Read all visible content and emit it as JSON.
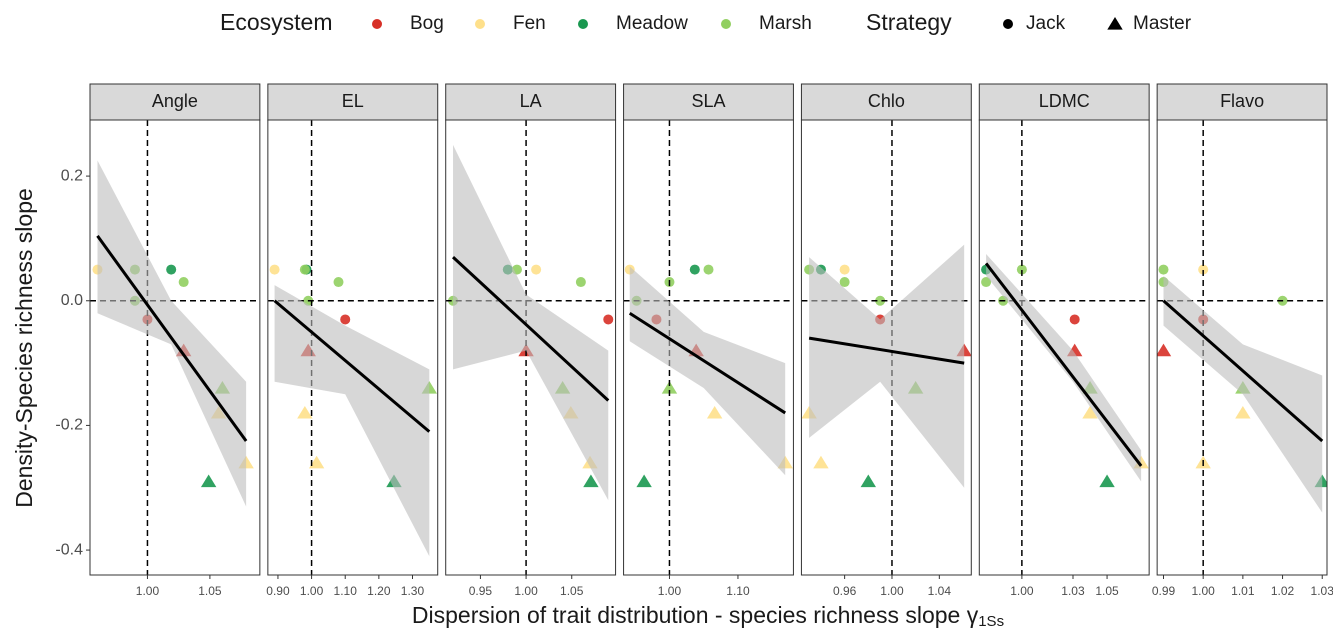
{
  "legend": {
    "ecosystem": {
      "title": "Ecosystem",
      "items": [
        {
          "name": "Bog",
          "color": "#d73027"
        },
        {
          "name": "Fen",
          "color": "#fee08b"
        },
        {
          "name": "Meadow",
          "color": "#1a9850"
        },
        {
          "name": "Marsh",
          "color": "#91cf60"
        }
      ]
    },
    "strategy": {
      "title": "Strategy",
      "items": [
        {
          "name": "Jack",
          "shape": "circle"
        },
        {
          "name": "Master",
          "shape": "triangle"
        }
      ]
    }
  },
  "x_label": "Dispersion of trait distribution - species richness slope γ",
  "x_label_sub": "1Ss",
  "y_label": "Density-Species richness slope",
  "chart_data": [
    {
      "type": "scatter",
      "title": "Angle",
      "xlim": [
        0.954,
        1.09
      ],
      "ylim": [
        -0.44,
        0.29
      ],
      "yticks": [
        -0.4,
        -0.2,
        {
          "value": 0,
          "label": "0.0"
        },
        0.2
      ],
      "xticks": [
        {
          "value": 1,
          "label": "1.00"
        },
        {
          "value": 1.05,
          "label": "1.05"
        }
      ],
      "hline": 0,
      "vline": 1,
      "points": {
        "x": [
          0.96,
          0.99,
          0.99,
          1.0,
          1.019,
          1.029,
          1.029,
          1.06,
          1.057,
          1.079,
          1.049
        ],
        "y": [
          0.05,
          0.05,
          0.0,
          -0.03,
          0.05,
          0.03,
          -0.08,
          -0.14,
          -0.18,
          -0.26,
          -0.29
        ],
        "ecosystem": [
          "Fen",
          "Marsh",
          "Marsh",
          "Bog",
          "Meadow",
          "Marsh",
          "Bog",
          "Marsh",
          "Fen",
          "Fen",
          "Meadow"
        ],
        "strategy": [
          "Jack",
          "Jack",
          "Jack",
          "Jack",
          "Jack",
          "Jack",
          "Master",
          "Master",
          "Master",
          "Master",
          "Master"
        ]
      },
      "fit": {
        "x": [
          0.96,
          1.079
        ],
        "y": [
          0.104,
          -0.225
        ]
      },
      "band": {
        "x": [
          0.96,
          1.019,
          1.079
        ],
        "upper": [
          0.225,
          0.0,
          -0.13
        ],
        "lower": [
          -0.02,
          -0.07,
          -0.33
        ]
      }
    },
    {
      "type": "scatter",
      "title": "EL",
      "xlim": [
        0.87,
        1.375
      ],
      "ylim": [
        -0.44,
        0.29
      ],
      "xticks": [
        {
          "value": 0.9,
          "label": "0.90"
        },
        {
          "value": 1,
          "label": "1.00"
        },
        {
          "value": 1.1,
          "label": "1.10"
        },
        {
          "value": 1.2,
          "label": "1.20"
        },
        {
          "value": 1.3,
          "label": "1.30"
        }
      ],
      "hline": 0,
      "vline": 1,
      "points": {
        "x": [
          0.89,
          0.985,
          0.98,
          0.99,
          1.08,
          1.1,
          0.99,
          0.98,
          1.015,
          1.245,
          1.35
        ],
        "y": [
          0.05,
          0.05,
          0.05,
          0.0,
          0.03,
          -0.03,
          -0.08,
          -0.18,
          -0.26,
          -0.29,
          -0.14
        ],
        "ecosystem": [
          "Fen",
          "Meadow",
          "Marsh",
          "Marsh",
          "Marsh",
          "Bog",
          "Bog",
          "Fen",
          "Fen",
          "Meadow",
          "Marsh"
        ],
        "strategy": [
          "Jack",
          "Jack",
          "Jack",
          "Jack",
          "Jack",
          "Jack",
          "Master",
          "Master",
          "Master",
          "Master",
          "Master"
        ]
      },
      "fit": {
        "x": [
          0.89,
          1.35
        ],
        "y": [
          0.0,
          -0.21
        ]
      },
      "band": {
        "x": [
          0.89,
          1.1,
          1.35
        ],
        "upper": [
          0.025,
          -0.04,
          -0.11
        ],
        "lower": [
          -0.13,
          -0.15,
          -0.41
        ]
      }
    },
    {
      "type": "scatter",
      "title": "LA",
      "xlim": [
        0.912,
        1.098
      ],
      "ylim": [
        -0.44,
        0.29
      ],
      "xticks": [
        {
          "value": 0.95,
          "label": "0.95"
        },
        {
          "value": 1,
          "label": "1.00"
        },
        {
          "value": 1.05,
          "label": "1.05"
        }
      ],
      "hline": 0,
      "vline": 1,
      "points": {
        "x": [
          0.92,
          0.98,
          0.99,
          1.011,
          1.06,
          1.09,
          1.0,
          1.04,
          1.049,
          1.07,
          1.071
        ],
        "y": [
          0.0,
          0.05,
          0.05,
          0.05,
          0.03,
          -0.03,
          -0.08,
          -0.14,
          -0.18,
          -0.26,
          -0.29
        ],
        "ecosystem": [
          "Marsh",
          "Meadow",
          "Marsh",
          "Fen",
          "Marsh",
          "Bog",
          "Bog",
          "Marsh",
          "Fen",
          "Fen",
          "Meadow"
        ],
        "strategy": [
          "Jack",
          "Jack",
          "Jack",
          "Jack",
          "Jack",
          "Jack",
          "Master",
          "Master",
          "Master",
          "Master",
          "Master"
        ]
      },
      "fit": {
        "x": [
          0.92,
          1.09
        ],
        "y": [
          0.07,
          -0.16
        ]
      },
      "band": {
        "x": [
          0.92,
          1.0,
          1.09
        ],
        "upper": [
          0.25,
          0.01,
          -0.08
        ],
        "lower": [
          -0.11,
          -0.08,
          -0.32
        ]
      }
    },
    {
      "type": "scatter",
      "title": "SLA",
      "xlim": [
        0.933,
        1.181
      ],
      "ylim": [
        -0.44,
        0.29
      ],
      "xticks": [
        {
          "value": 1,
          "label": "1.00"
        },
        {
          "value": 1.1,
          "label": "1.10"
        }
      ],
      "hline": 0,
      "vline": 1,
      "points": {
        "x": [
          0.942,
          0.952,
          0.981,
          1.0,
          1.037,
          1.057,
          1.039,
          1.0,
          0.963,
          1.066,
          1.169
        ],
        "y": [
          0.05,
          0.0,
          -0.03,
          0.03,
          0.05,
          0.05,
          -0.08,
          -0.14,
          -0.29,
          -0.18,
          -0.26
        ],
        "ecosystem": [
          "Fen",
          "Marsh",
          "Bog",
          "Marsh",
          "Meadow",
          "Marsh",
          "Bog",
          "Marsh",
          "Meadow",
          "Fen",
          "Fen"
        ],
        "strategy": [
          "Jack",
          "Jack",
          "Jack",
          "Jack",
          "Jack",
          "Jack",
          "Master",
          "Master",
          "Master",
          "Master",
          "Master"
        ]
      },
      "fit": {
        "x": [
          0.942,
          1.169
        ],
        "y": [
          -0.02,
          -0.18
        ]
      },
      "band": {
        "x": [
          0.942,
          1.05,
          1.169
        ],
        "upper": [
          0.055,
          -0.05,
          -0.1
        ],
        "lower": [
          -0.065,
          -0.14,
          -0.28
        ]
      }
    },
    {
      "type": "scatter",
      "title": "Chlo",
      "xlim": [
        0.9235,
        1.067
      ],
      "ylim": [
        -0.44,
        0.29
      ],
      "xticks": [
        {
          "value": 0.96,
          "label": "0.96"
        },
        {
          "value": 1,
          "label": "1.00"
        },
        {
          "value": 1.04,
          "label": "1.04"
        }
      ],
      "hline": 0,
      "vline": 1,
      "points": {
        "x": [
          0.93,
          0.94,
          0.96,
          0.96,
          0.99,
          0.99,
          1.061,
          1.02,
          0.93,
          0.94,
          0.98
        ],
        "y": [
          0.05,
          0.05,
          0.05,
          0.03,
          0.0,
          -0.03,
          -0.08,
          -0.14,
          -0.18,
          -0.26,
          -0.29
        ],
        "ecosystem": [
          "Marsh",
          "Meadow",
          "Fen",
          "Marsh",
          "Marsh",
          "Bog",
          "Bog",
          "Marsh",
          "Fen",
          "Fen",
          "Meadow"
        ],
        "strategy": [
          "Jack",
          "Jack",
          "Jack",
          "Jack",
          "Jack",
          "Jack",
          "Master",
          "Master",
          "Master",
          "Master",
          "Master"
        ]
      },
      "fit": {
        "x": [
          0.93,
          1.061
        ],
        "y": [
          -0.06,
          -0.1
        ]
      },
      "band": {
        "x": [
          0.93,
          0.99,
          1.061
        ],
        "upper": [
          0.07,
          -0.03,
          0.09
        ],
        "lower": [
          -0.22,
          -0.13,
          -0.3
        ]
      }
    },
    {
      "type": "scatter",
      "title": "LDMC",
      "xlim": [
        0.975,
        1.0747
      ],
      "ylim": [
        -0.44,
        0.29
      ],
      "xticks": [
        {
          "value": 1,
          "label": "1.00"
        },
        {
          "value": 1.03,
          "label": "1.03"
        },
        {
          "value": 1.05,
          "label": "1.05"
        }
      ],
      "hline": 0,
      "vline": 1,
      "points": {
        "x": [
          0.979,
          0.979,
          0.989,
          1.0,
          1.031,
          1.031,
          1.04,
          1.04,
          1.05,
          1.07
        ],
        "y": [
          0.05,
          0.03,
          0.0,
          0.05,
          -0.03,
          -0.08,
          -0.14,
          -0.18,
          -0.29,
          -0.26
        ],
        "ecosystem": [
          "Meadow",
          "Marsh",
          "Marsh",
          "Marsh",
          "Bog",
          "Bog",
          "Marsh",
          "Fen",
          "Meadow",
          "Fen"
        ],
        "strategy": [
          "Jack",
          "Jack",
          "Jack",
          "Jack",
          "Jack",
          "Master",
          "Master",
          "Master",
          "Master",
          "Master"
        ]
      },
      "fit": {
        "x": [
          0.979,
          1.07
        ],
        "y": [
          0.06,
          -0.265
        ]
      },
      "band": {
        "x": [
          0.979,
          1.03,
          1.07
        ],
        "upper": [
          0.075,
          -0.08,
          -0.24
        ],
        "lower": [
          0.04,
          -0.13,
          -0.29
        ]
      }
    },
    {
      "type": "scatter",
      "title": "Flavo",
      "xlim": [
        0.9884,
        1.0312
      ],
      "ylim": [
        -0.44,
        0.29
      ],
      "xticks": [
        {
          "value": 0.99,
          "label": "0.99"
        },
        {
          "value": 1,
          "label": "1.00"
        },
        {
          "value": 1.01,
          "label": "1.01"
        },
        {
          "value": 1.02,
          "label": "1.02"
        },
        {
          "value": 1.03,
          "label": "1.03"
        }
      ],
      "hline": 0,
      "vline": 1,
      "points": {
        "x": [
          0.99,
          0.99,
          1.0,
          1.0,
          1.02,
          0.99,
          1.01,
          1.01,
          1.0,
          1.03
        ],
        "y": [
          0.05,
          0.03,
          0.05,
          -0.03,
          0.0,
          -0.08,
          -0.14,
          -0.18,
          -0.26,
          -0.29
        ],
        "ecosystem": [
          "Marsh",
          "Marsh",
          "Fen",
          "Bog",
          "Marsh",
          "Bog",
          "Marsh",
          "Fen",
          "Fen",
          "Meadow"
        ],
        "strategy": [
          "Jack",
          "Jack",
          "Jack",
          "Jack",
          "Jack",
          "Master",
          "Master",
          "Master",
          "Master",
          "Master"
        ]
      },
      "fit": {
        "x": [
          0.99,
          1.03
        ],
        "y": [
          0.0,
          -0.225
        ]
      },
      "band": {
        "x": [
          0.99,
          1.01,
          1.03
        ],
        "upper": [
          0.04,
          -0.07,
          -0.12
        ],
        "lower": [
          -0.04,
          -0.15,
          -0.34
        ]
      }
    }
  ]
}
